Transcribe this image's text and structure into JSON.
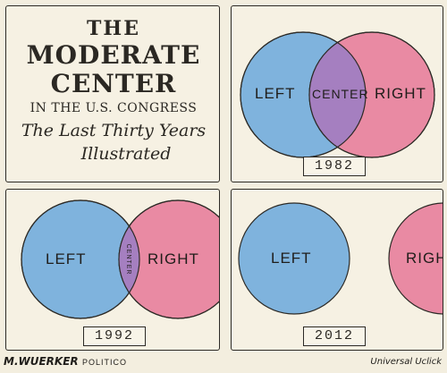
{
  "title_panel": {
    "line1": "THE",
    "line2": "MODERATE",
    "line3": "CENTER",
    "line4": "IN THE U.S. CONGRESS",
    "line5": "The Last Thirty Years",
    "line6": "Illustrated"
  },
  "panels": [
    {
      "year": "1982",
      "left_label": "LEFT",
      "center_label": "CENTER",
      "right_label": "RIGHT"
    },
    {
      "year": "1992",
      "left_label": "LEFT",
      "center_label": "CENTER",
      "right_label": "RIGHT"
    },
    {
      "year": "2012",
      "left_label": "LEFT",
      "center_label": "",
      "right_label": "RIGH"
    }
  ],
  "credits": {
    "artist": "M.WUERKER",
    "publication": "POLITICO",
    "syndicate": "Universal Uclick"
  },
  "colors": {
    "left_circle": "#7fb3dd",
    "right_circle": "#e98aa3",
    "overlap": "#a57fc0",
    "panel_bg": "#f6f1e3",
    "ink": "#2c2a26"
  }
}
